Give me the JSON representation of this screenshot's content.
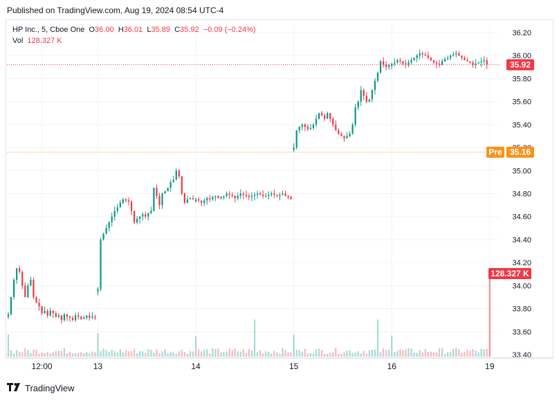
{
  "header": {
    "published": "Published on TradingView.com, Aug 19, 2024 08:54 UTC-4"
  },
  "legend": {
    "symbol": "HP Inc., 5, Cboe One",
    "o_label": "O",
    "o_val": "36.00",
    "h_label": "H",
    "h_val": "36.01",
    "l_label": "L",
    "l_val": "35.89",
    "c_label": "C",
    "c_val": "35.92",
    "change": "−0.09 (−0.24%)",
    "vol_label": "Vol",
    "vol_val": "128.327 K"
  },
  "footer": {
    "brand": "TradingView"
  },
  "colors": {
    "up": "#089981",
    "down": "#f23645",
    "pre": "#f7931a",
    "grid": "#f0f3fa",
    "text": "#131722"
  },
  "chart_data": {
    "type": "candlestick",
    "y_axis_ticks": [
      "36.20",
      "36.00",
      "35.80",
      "35.60",
      "35.40",
      "35.20",
      "35.00",
      "34.80",
      "34.60",
      "34.40",
      "34.20",
      "34.00",
      "33.80",
      "33.60",
      "33.40"
    ],
    "ylim": [
      33.4,
      36.2
    ],
    "x_axis_ticks": [
      {
        "label": "12:00",
        "slot": 12
      },
      {
        "label": "13",
        "slot": 32
      },
      {
        "label": "14",
        "slot": 67
      },
      {
        "label": "15",
        "slot": 102
      },
      {
        "label": "16",
        "slot": 137
      },
      {
        "label": "19",
        "slot": 172
      }
    ],
    "slots": 176,
    "last_price_label": {
      "value": 35.92,
      "text": "35.92"
    },
    "pre_label": {
      "value": 35.16,
      "text": "35.16",
      "tag": "Pre"
    },
    "volume_label": {
      "text": "128.327 K",
      "value": 128327
    },
    "volume_max": 128327,
    "session_anchors": [
      {
        "start": 0,
        "prices": [
          33.75,
          33.9,
          34.05,
          34.15,
          34.12,
          34.0,
          33.9,
          34.0,
          34.05,
          33.9,
          33.85,
          33.82,
          33.76,
          33.78,
          33.74,
          33.78,
          33.76,
          33.73,
          33.74,
          33.7,
          33.75,
          33.73,
          33.72,
          33.7,
          33.74,
          33.73,
          33.71,
          33.72,
          33.74,
          33.72,
          33.73,
          33.72
        ]
      },
      {
        "start": 32,
        "prices": [
          33.97,
          34.4,
          34.45,
          34.5,
          34.55,
          34.6,
          34.65,
          34.68,
          34.72,
          34.75,
          34.74,
          34.73,
          34.65,
          34.55,
          34.58,
          34.6,
          34.62,
          34.6,
          34.63,
          34.65,
          34.85,
          34.78,
          34.7,
          34.8,
          34.82,
          34.85,
          34.9,
          34.92,
          35.0,
          34.95,
          34.8,
          34.72,
          34.75,
          34.76,
          34.75
        ]
      },
      {
        "start": 67,
        "prices": [
          34.75,
          34.74,
          34.72,
          34.74,
          34.76,
          34.75,
          34.77,
          34.78,
          34.76,
          34.77,
          34.78,
          34.8,
          34.79,
          34.78,
          34.76,
          34.78,
          34.8,
          34.79,
          34.78,
          34.77,
          34.78,
          34.79,
          34.8,
          34.79,
          34.78,
          34.78,
          34.79,
          34.8,
          34.79,
          34.78,
          34.79,
          34.8,
          34.78,
          34.77,
          34.75
        ]
      },
      {
        "start": 102,
        "prices": [
          35.2,
          35.35,
          35.38,
          35.4,
          35.38,
          35.36,
          35.37,
          35.4,
          35.45,
          35.5,
          35.48,
          35.45,
          35.5,
          35.45,
          35.4,
          35.35,
          35.32,
          35.3,
          35.28,
          35.3,
          35.32,
          35.4,
          35.55,
          35.6,
          35.7,
          35.65,
          35.6,
          35.62,
          35.7,
          35.78,
          35.85,
          35.95,
          35.92,
          35.9,
          35.92
        ]
      },
      {
        "start": 137,
        "prices": [
          35.93,
          35.94,
          35.96,
          35.95,
          35.93,
          35.92,
          35.94,
          35.96,
          35.98,
          36.0,
          36.02,
          36.01,
          36.0,
          35.98,
          35.96,
          35.94,
          35.93,
          35.92,
          35.95,
          35.97,
          35.98,
          36.0,
          36.01,
          36.02,
          36.0,
          35.98,
          35.96,
          35.95,
          35.94,
          35.92,
          35.93,
          35.94,
          35.95,
          35.96,
          35.92
        ]
      }
    ]
  }
}
